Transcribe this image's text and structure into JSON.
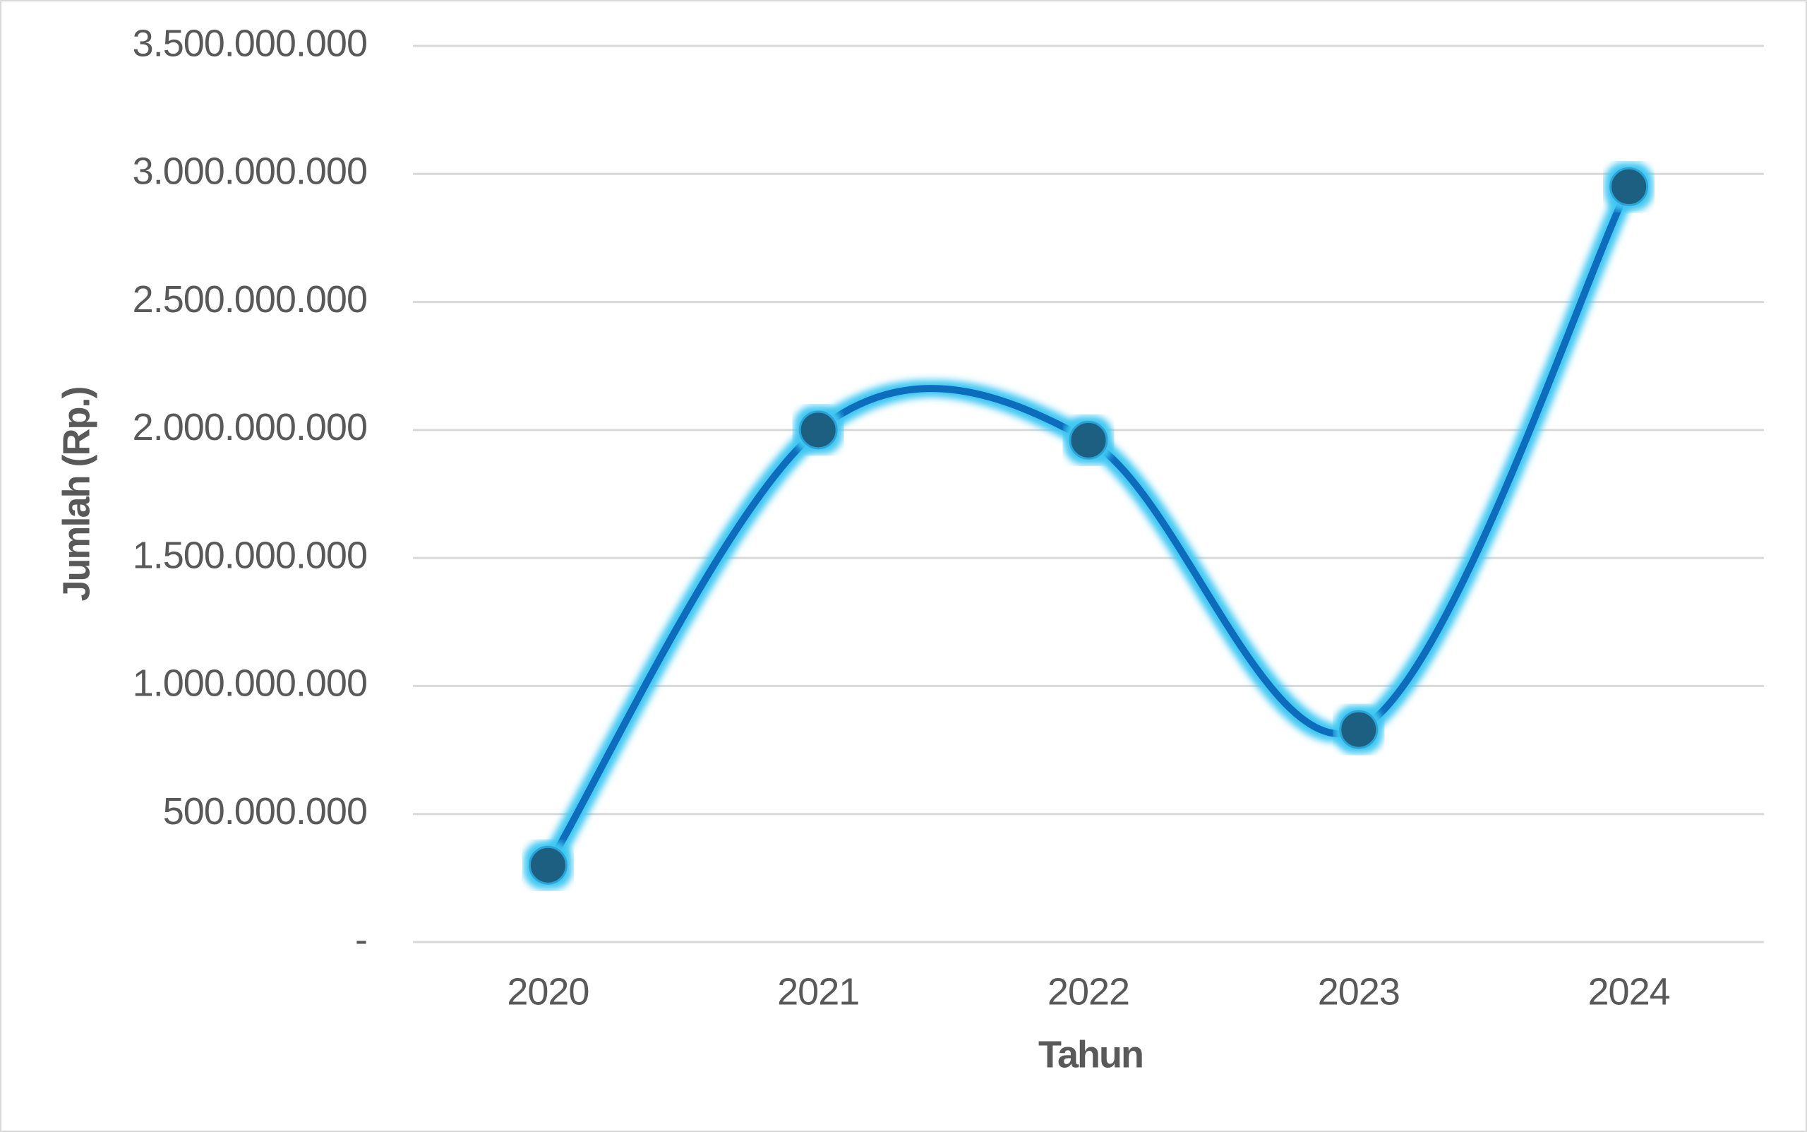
{
  "chart_data": {
    "type": "line",
    "x_label": "Tahun",
    "y_label": "Jumlah (Rp.)",
    "categories": [
      "2020",
      "2021",
      "2022",
      "2023",
      "2024"
    ],
    "series": [
      {
        "color": "#0a6cbc",
        "values": [
          300000000,
          2000000000,
          1960000000,
          830000000,
          2950000000
        ]
      }
    ],
    "ylim": [
      0,
      3500000000
    ],
    "yticks": [
      {
        "value": 0,
        "label": "-"
      },
      {
        "value": 500000000,
        "label": "500.000.000"
      },
      {
        "value": 1000000000,
        "label": "1.000.000.000"
      },
      {
        "value": 1500000000,
        "label": "1.500.000.000"
      },
      {
        "value": 2000000000,
        "label": "2.000.000.000"
      },
      {
        "value": 2500000000,
        "label": "2.500.000.000"
      },
      {
        "value": 3000000000,
        "label": "3.000.000.000"
      },
      {
        "value": 3500000000,
        "label": "3.500.000.000"
      }
    ],
    "grid": true,
    "smooth": true
  }
}
